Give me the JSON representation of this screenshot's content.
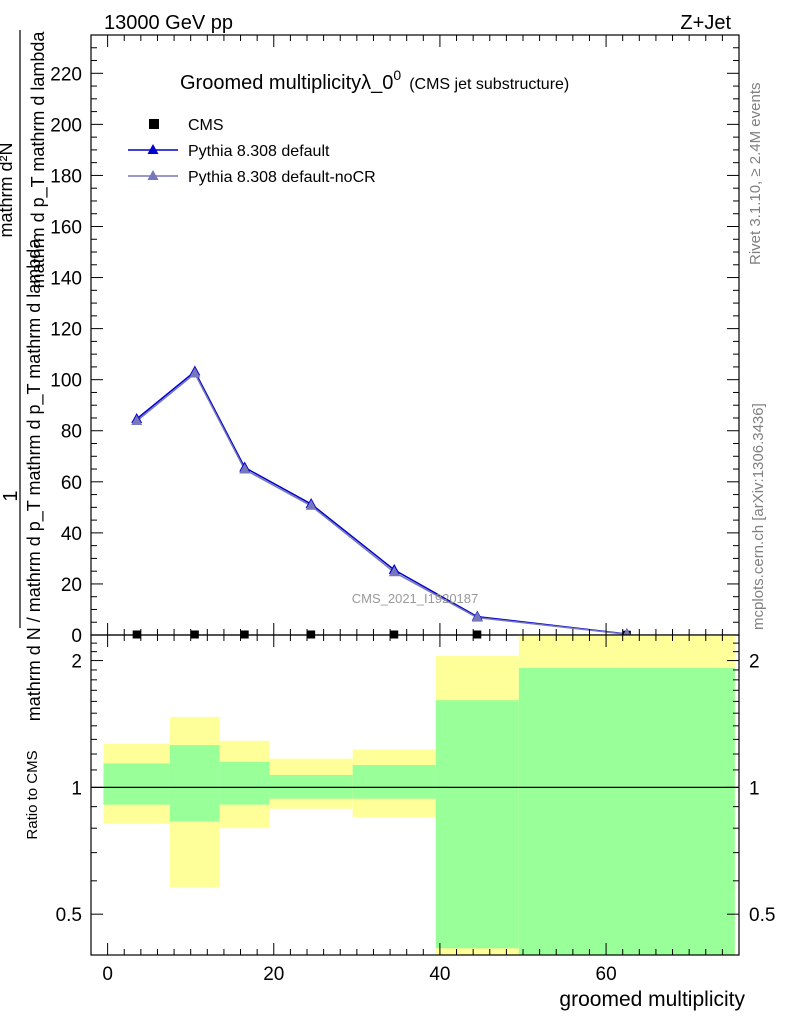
{
  "header": {
    "energy": "13000 GeV pp",
    "process": "Z+Jet"
  },
  "side": {
    "rivet": "Rivet 3.1.10, ≥ 2.4M events",
    "mcplots": "mcplots.cern.ch [arXiv:1306.3436]"
  },
  "chart_data": [
    {
      "type": "line",
      "title": "Groomed multiplicityλ_0",
      "title_superscript": "0",
      "subtitle": "(CMS jet substructure)",
      "watermark": "CMS_2021_I1920187",
      "ylabel": "1 / mathrm d N / mathrm d p_T mathrm d p_T mathrm d lambda   mathrm d^2N",
      "ylabel_parts": {
        "numerator": "mathrm d²N",
        "numerator_line2": "mathrm d p_T mathrm d lambda",
        "denominator": "mathrm d N / mathrm d p_T mathrm d p_T mathrm d lambda",
        "one": "1"
      },
      "xlim": [
        -2,
        76
      ],
      "ylim": [
        0,
        235
      ],
      "y_ticks": [
        0,
        20,
        40,
        60,
        80,
        100,
        120,
        140,
        160,
        180,
        200,
        220
      ],
      "legend_position": "top-left",
      "series": [
        {
          "name": "CMS",
          "color": "#000000",
          "marker": "square",
          "x": [
            3.5,
            10.5,
            16.5,
            24.5,
            34.5,
            44.5,
            62.5
          ],
          "y": [
            0.2,
            0.2,
            0.2,
            0.2,
            0.2,
            0.2,
            0.1
          ]
        },
        {
          "name": "Pythia 8.308 default",
          "color": "#0000cc",
          "marker": "triangle",
          "x": [
            3.5,
            10.5,
            16.5,
            24.5,
            34.5,
            44.5,
            62.5
          ],
          "y": [
            84.6,
            103.2,
            65.6,
            51.3,
            25.5,
            7.2,
            0.4
          ]
        },
        {
          "name": "Pythia 8.308 default-noCR",
          "color": "#7777bb",
          "marker": "triangle",
          "x": [
            3.5,
            10.5,
            16.5,
            24.5,
            34.5,
            44.5,
            62.5
          ],
          "y": [
            83.8,
            102.4,
            64.8,
            50.6,
            24.6,
            6.8,
            0.3
          ]
        }
      ]
    },
    {
      "type": "area",
      "ylabel": "Ratio to CMS",
      "xlabel": "groomed multiplicity",
      "xlim": [
        -2,
        76
      ],
      "ylim": [
        0.4,
        2.3
      ],
      "log_y": true,
      "x_ticks": [
        0,
        20,
        40,
        60
      ],
      "y_ticks": [
        0.5,
        1,
        2
      ],
      "reference_line": 1,
      "bands": [
        {
          "x": [
            -0.5,
            7.5
          ],
          "green": [
            0.91,
            1.14
          ],
          "yellow": [
            0.82,
            1.27
          ]
        },
        {
          "x": [
            7.5,
            13.5
          ],
          "green": [
            0.83,
            1.26
          ],
          "yellow": [
            0.58,
            1.47
          ]
        },
        {
          "x": [
            13.5,
            19.5
          ],
          "green": [
            0.91,
            1.15
          ],
          "yellow": [
            0.8,
            1.29
          ]
        },
        {
          "x": [
            19.5,
            29.5
          ],
          "green": [
            0.94,
            1.07
          ],
          "yellow": [
            0.89,
            1.17
          ]
        },
        {
          "x": [
            29.5,
            39.5
          ],
          "green": [
            0.94,
            1.13
          ],
          "yellow": [
            0.85,
            1.23
          ]
        },
        {
          "x": [
            39.5,
            49.5
          ],
          "green": [
            0.4,
            1.61
          ],
          "yellow": [
            0.4,
            2.05
          ],
          "yellow_cut": [
            0.4,
            0.415
          ]
        },
        {
          "x": [
            49.5,
            75.5
          ],
          "green": [
            0.4,
            1.92
          ],
          "yellow": [
            0.4,
            2.3
          ]
        }
      ],
      "band_colors": {
        "green": "#99ff99",
        "yellow": "#ffff99"
      }
    }
  ]
}
